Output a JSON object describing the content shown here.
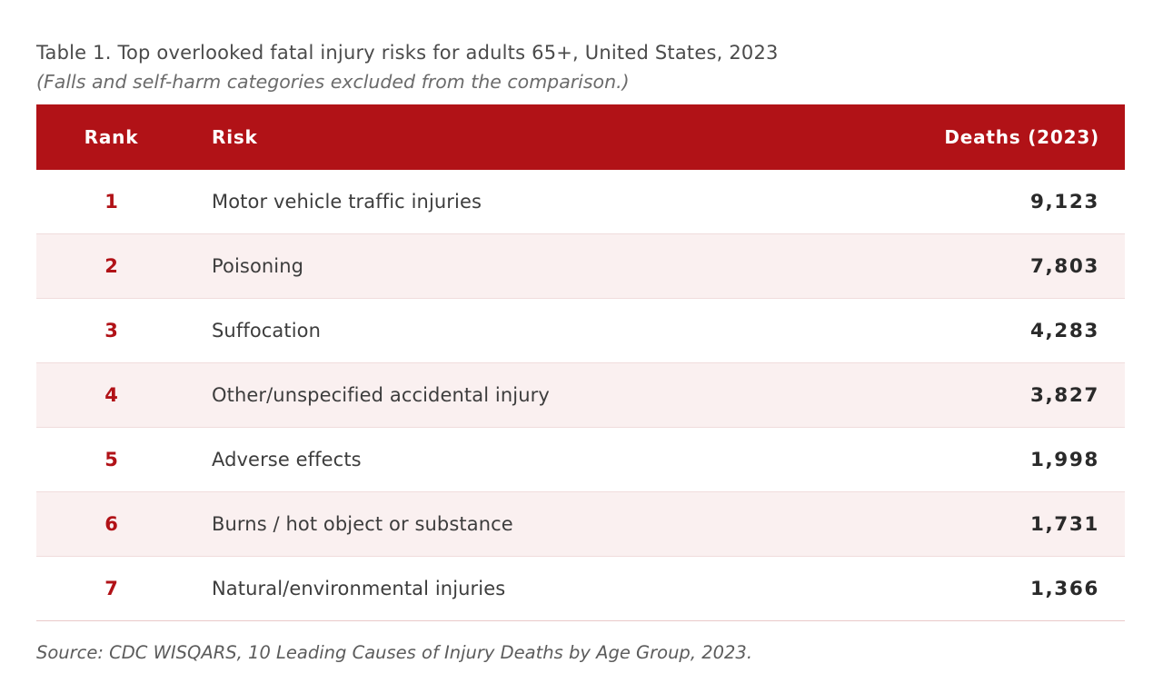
{
  "page": {
    "title": "Table 1. Top overlooked fatal injury risks for adults 65+, United States, 2023",
    "subtitle": "(Falls and self-harm categories excluded from the comparison.)",
    "source": "Source: CDC WISQARS, 10 Leading Causes of Injury Deaths by Age Group, 2023."
  },
  "colors": {
    "header_bg": "#b11217",
    "accent_red": "#b11217",
    "row_alt_bg": "#faf0f0",
    "row_divider": "#f0dcdc",
    "table_bottom_border": "#e9caca"
  },
  "table": {
    "columns": {
      "rank": "Rank",
      "risk": "Risk",
      "deaths": "Deaths (2023)"
    },
    "rows": [
      {
        "rank": "1",
        "risk": "Motor vehicle traffic injuries",
        "deaths": "9,123"
      },
      {
        "rank": "2",
        "risk": "Poisoning",
        "deaths": "7,803"
      },
      {
        "rank": "3",
        "risk": "Suffocation",
        "deaths": "4,283"
      },
      {
        "rank": "4",
        "risk": "Other/unspecified accidental injury",
        "deaths": "3,827"
      },
      {
        "rank": "5",
        "risk": "Adverse effects",
        "deaths": "1,998"
      },
      {
        "rank": "6",
        "risk": "Burns / hot object or substance",
        "deaths": "1,731"
      },
      {
        "rank": "7",
        "risk": "Natural/environmental injuries",
        "deaths": "1,366"
      }
    ]
  },
  "chart_data": {
    "type": "table",
    "title": "Table 1. Top overlooked fatal injury risks for adults 65+, United States, 2023",
    "subtitle": "(Falls and self-harm categories excluded from the comparison.)",
    "columns": [
      "Rank",
      "Risk",
      "Deaths (2023)"
    ],
    "rows": [
      [
        1,
        "Motor vehicle traffic injuries",
        9123
      ],
      [
        2,
        "Poisoning",
        7803
      ],
      [
        3,
        "Suffocation",
        4283
      ],
      [
        4,
        "Other/unspecified accidental injury",
        3827
      ],
      [
        5,
        "Adverse effects",
        1998
      ],
      [
        6,
        "Burns / hot object or substance",
        1731
      ],
      [
        7,
        "Natural/environmental injuries",
        1366
      ]
    ],
    "source": "Source: CDC WISQARS, 10 Leading Causes of Injury Deaths by Age Group, 2023."
  }
}
